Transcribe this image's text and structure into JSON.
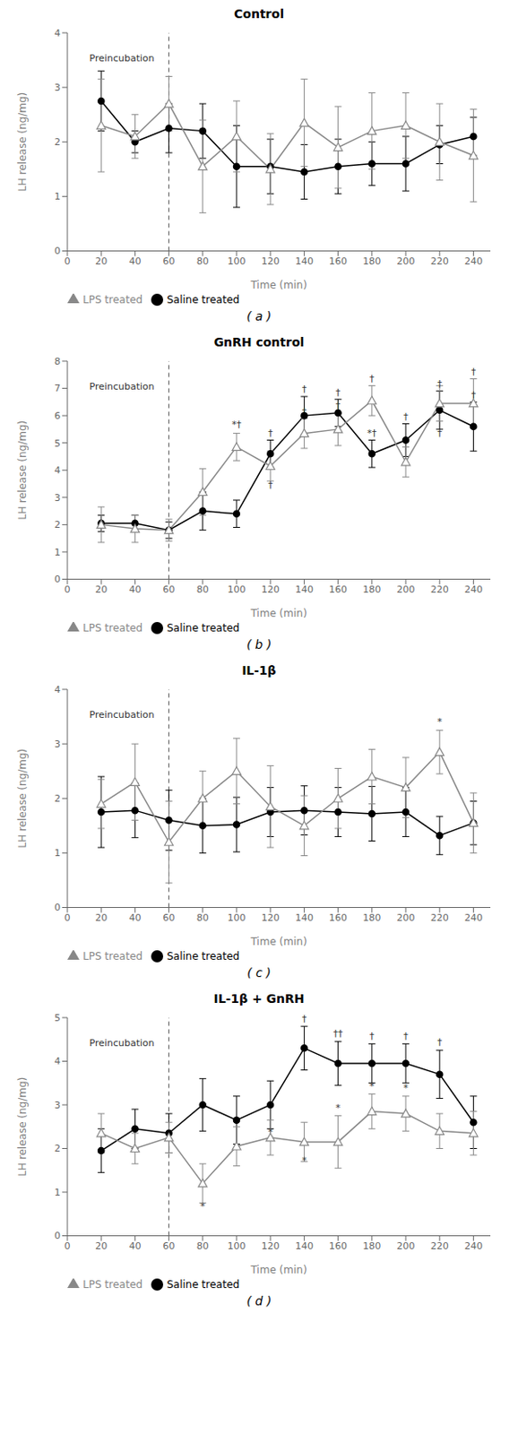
{
  "chart_data": [
    {
      "type": "line",
      "title": "Control",
      "subtitle": "( a )",
      "xlabel": "Time (min)",
      "ylabel": "LH release (ng/mg)",
      "x": [
        20,
        40,
        60,
        80,
        100,
        120,
        140,
        160,
        180,
        200,
        220,
        240
      ],
      "xlim": [
        0,
        250
      ],
      "xticks": [
        0,
        20,
        40,
        60,
        80,
        100,
        120,
        140,
        160,
        180,
        200,
        220,
        240
      ],
      "ylim": [
        0,
        4
      ],
      "yticks": [
        0,
        1,
        2,
        3,
        4
      ],
      "grid": false,
      "legend": "bottom",
      "series": [
        {
          "name": "Saline treated",
          "color": "#000000",
          "marker": "circle",
          "values": [
            2.75,
            2.0,
            2.25,
            2.2,
            1.55,
            1.55,
            1.45,
            1.55,
            1.6,
            1.6,
            1.95,
            2.1
          ],
          "errors": [
            0.55,
            0.2,
            0.45,
            0.5,
            0.75,
            0.5,
            0.5,
            0.5,
            0.4,
            0.5,
            0.35,
            0.35
          ]
        },
        {
          "name": "LPS treated",
          "color": "#888888",
          "marker": "triangle",
          "values": [
            2.3,
            2.1,
            2.7,
            1.55,
            2.1,
            1.5,
            2.35,
            1.9,
            2.2,
            2.3,
            2.0,
            1.75
          ],
          "errors": [
            0.85,
            0.4,
            0.5,
            0.85,
            0.65,
            0.65,
            0.8,
            0.75,
            0.7,
            0.6,
            0.7,
            0.85
          ]
        }
      ],
      "vlines": [
        {
          "x": 60,
          "line_style": "dashed"
        }
      ],
      "annotations": [
        {
          "x": 13,
          "y": 3.64,
          "text": "Preincubation"
        }
      ]
    },
    {
      "type": "line",
      "title": "GnRH control",
      "subtitle": "( b )",
      "xlabel": "Time (min)",
      "ylabel": "LH release (ng/mg)",
      "x": [
        20,
        40,
        60,
        80,
        100,
        120,
        140,
        160,
        180,
        200,
        220,
        240
      ],
      "xlim": [
        0,
        250
      ],
      "xticks": [
        0,
        20,
        40,
        60,
        80,
        100,
        120,
        140,
        160,
        180,
        200,
        220,
        240
      ],
      "ylim": [
        0,
        8
      ],
      "yticks": [
        0,
        1,
        2,
        3,
        4,
        5,
        6,
        7,
        8
      ],
      "grid": false,
      "legend": "bottom",
      "series": [
        {
          "name": "Saline treated",
          "color": "#000000",
          "marker": "circle",
          "values": [
            2.05,
            2.05,
            1.8,
            2.5,
            2.4,
            4.6,
            6.0,
            6.1,
            4.6,
            5.1,
            6.2,
            5.6
          ],
          "errors": [
            0.3,
            0.3,
            0.3,
            0.7,
            0.5,
            0.5,
            0.7,
            0.5,
            0.5,
            0.6,
            0.7,
            0.9
          ]
        },
        {
          "name": "LPS treated",
          "color": "#888888",
          "marker": "triangle",
          "values": [
            2.0,
            1.85,
            1.8,
            3.2,
            4.85,
            4.15,
            5.35,
            5.5,
            6.55,
            4.3,
            6.45,
            6.45
          ],
          "errors": [
            0.65,
            0.5,
            0.4,
            0.85,
            0.5,
            0.55,
            0.55,
            0.6,
            0.55,
            0.55,
            0.65,
            0.9
          ]
        }
      ],
      "vlines": [
        {
          "x": 60,
          "line_style": "dashed"
        }
      ],
      "annotations": [
        {
          "x": 13,
          "y": 7.28,
          "text": "Preincubation"
        },
        {
          "x": 100,
          "y": 5.45,
          "text": "*†"
        },
        {
          "x": 120,
          "y": 5.15,
          "text": "†"
        },
        {
          "x": 120,
          "y": 3.25,
          "text": "†"
        },
        {
          "x": 140,
          "y": 6.75,
          "text": "†"
        },
        {
          "x": 140,
          "y": 5.95,
          "text": "†"
        },
        {
          "x": 160,
          "y": 6.65,
          "text": "†"
        },
        {
          "x": 160,
          "y": 6.15,
          "text": "†"
        },
        {
          "x": 180,
          "y": 5.15,
          "text": "*†"
        },
        {
          "x": 180,
          "y": 7.15,
          "text": "†"
        },
        {
          "x": 200,
          "y": 5.75,
          "text": "†"
        },
        {
          "x": 200,
          "y": 4.9,
          "text": "†"
        },
        {
          "x": 220,
          "y": 6.95,
          "text": "†"
        },
        {
          "x": 220,
          "y": 5.15,
          "text": "†"
        },
        {
          "x": 240,
          "y": 6.55,
          "text": "†"
        },
        {
          "x": 240,
          "y": 7.4,
          "text": "†"
        }
      ]
    },
    {
      "type": "line",
      "title": "IL-1β",
      "subtitle": "( c )",
      "xlabel": "Time (min)",
      "ylabel": "LH release (ng/mg)",
      "x": [
        20,
        40,
        60,
        80,
        100,
        120,
        140,
        160,
        180,
        200,
        220,
        240
      ],
      "xlim": [
        0,
        250
      ],
      "xticks": [
        0,
        20,
        40,
        60,
        80,
        100,
        120,
        140,
        160,
        180,
        200,
        220,
        240
      ],
      "ylim": [
        0,
        4
      ],
      "yticks": [
        0,
        1,
        2,
        3,
        4
      ],
      "grid": false,
      "legend": "bottom",
      "series": [
        {
          "name": "Saline treated",
          "color": "#000000",
          "marker": "circle",
          "values": [
            1.75,
            1.78,
            1.6,
            1.5,
            1.52,
            1.75,
            1.78,
            1.75,
            1.72,
            1.75,
            1.32,
            1.55
          ],
          "errors": [
            0.65,
            0.5,
            0.55,
            0.5,
            0.5,
            0.45,
            0.45,
            0.45,
            0.5,
            0.45,
            0.35,
            0.4
          ]
        },
        {
          "name": "LPS treated",
          "color": "#888888",
          "marker": "triangle",
          "values": [
            1.9,
            2.3,
            1.2,
            2.0,
            2.5,
            1.85,
            1.5,
            2.0,
            2.4,
            2.2,
            2.85,
            1.55
          ],
          "errors": [
            0.45,
            0.7,
            0.75,
            0.5,
            0.6,
            0.75,
            0.55,
            0.55,
            0.5,
            0.55,
            0.4,
            0.55
          ]
        }
      ],
      "vlines": [
        {
          "x": 60,
          "line_style": "dashed"
        }
      ],
      "annotations": [
        {
          "x": 13,
          "y": 3.64,
          "text": "Preincubation"
        },
        {
          "x": 220,
          "y": 3.3,
          "text": "*"
        }
      ]
    },
    {
      "type": "line",
      "title": "IL-1β + GnRH",
      "subtitle": "( d )",
      "xlabel": "Time (min)",
      "ylabel": "LH release (ng/mg)",
      "x": [
        20,
        40,
        60,
        80,
        100,
        120,
        140,
        160,
        180,
        200,
        220,
        240
      ],
      "xlim": [
        0,
        250
      ],
      "xticks": [
        0,
        20,
        40,
        60,
        80,
        100,
        120,
        140,
        160,
        180,
        200,
        220,
        240
      ],
      "ylim": [
        0,
        5
      ],
      "yticks": [
        0,
        1,
        2,
        3,
        4,
        5
      ],
      "grid": false,
      "legend": "bottom",
      "series": [
        {
          "name": "Saline treated",
          "color": "#000000",
          "marker": "circle",
          "values": [
            1.95,
            2.45,
            2.35,
            3.0,
            2.65,
            3.0,
            4.3,
            3.95,
            3.95,
            3.95,
            3.7,
            2.6
          ],
          "errors": [
            0.5,
            0.45,
            0.45,
            0.6,
            0.55,
            0.55,
            0.5,
            0.5,
            0.45,
            0.45,
            0.55,
            0.6
          ]
        },
        {
          "name": "LPS treated",
          "color": "#888888",
          "marker": "triangle",
          "values": [
            2.35,
            2.0,
            2.25,
            1.2,
            2.05,
            2.25,
            2.15,
            2.15,
            2.85,
            2.8,
            2.4,
            2.35
          ],
          "errors": [
            0.45,
            0.35,
            0.35,
            0.45,
            0.45,
            0.4,
            0.45,
            0.6,
            0.4,
            0.4,
            0.4,
            0.5
          ]
        }
      ],
      "vlines": [
        {
          "x": 60,
          "line_style": "dashed"
        }
      ],
      "annotations": [
        {
          "x": 13,
          "y": 4.55,
          "text": "Preincubation"
        },
        {
          "x": 80,
          "y": 0.55,
          "text": "*"
        },
        {
          "x": 120,
          "y": 2.25,
          "text": "*"
        },
        {
          "x": 140,
          "y": 4.85,
          "text": "†"
        },
        {
          "x": 140,
          "y": 1.6,
          "text": "*"
        },
        {
          "x": 160,
          "y": 4.5,
          "text": "††"
        },
        {
          "x": 160,
          "y": 2.8,
          "text": "*"
        },
        {
          "x": 180,
          "y": 4.45,
          "text": "†"
        },
        {
          "x": 180,
          "y": 3.3,
          "text": "*"
        },
        {
          "x": 200,
          "y": 4.45,
          "text": "†"
        },
        {
          "x": 200,
          "y": 3.25,
          "text": "*"
        },
        {
          "x": 220,
          "y": 4.3,
          "text": "†"
        }
      ]
    }
  ]
}
